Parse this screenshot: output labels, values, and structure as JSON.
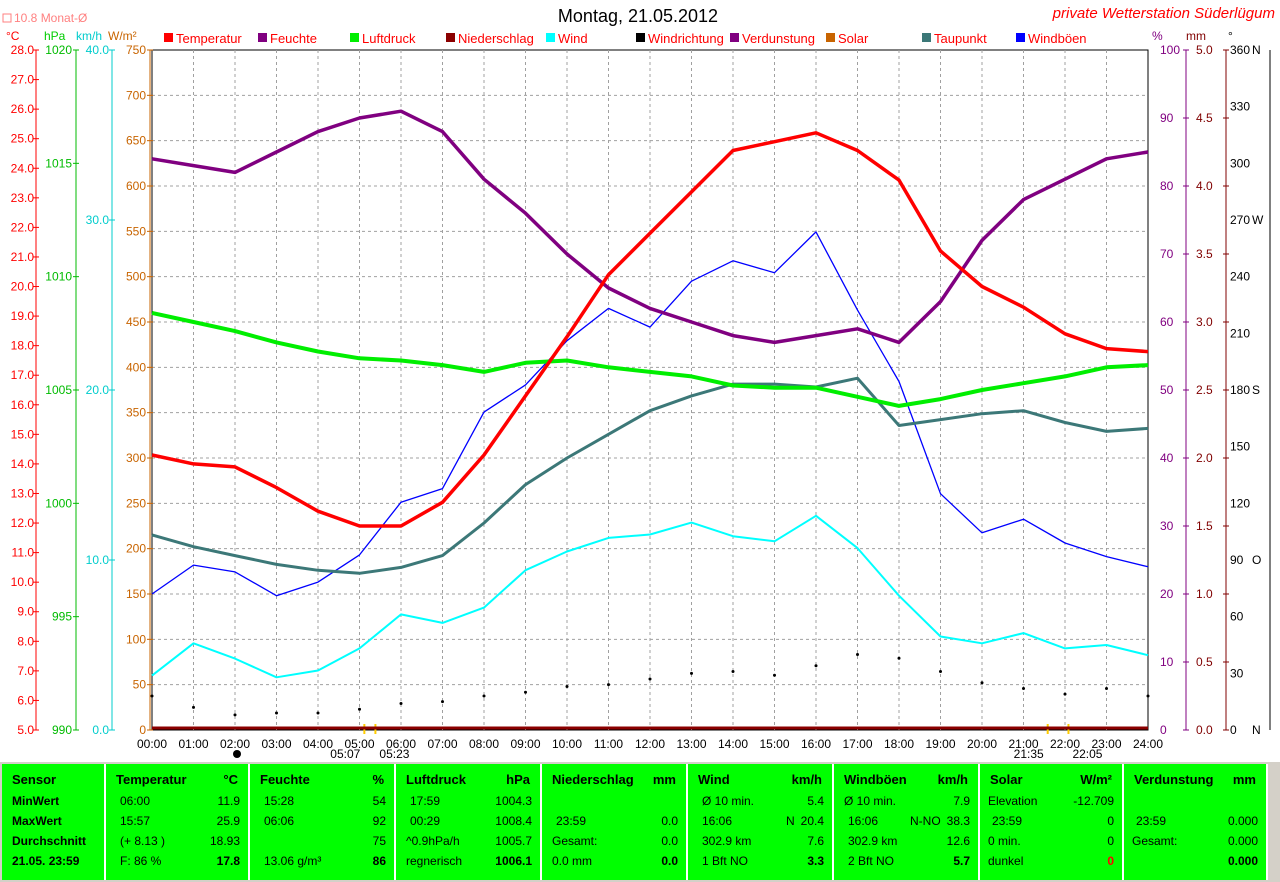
{
  "header": {
    "title": "Montag, 21.05.2012",
    "station": "private Wetterstation Süderlügum",
    "monthly_avg": "10.8 Monat-Ø",
    "units_left": [
      "°C",
      "hPa",
      "km/h",
      "W/m²"
    ],
    "units_right": [
      "%",
      "mm",
      "°"
    ]
  },
  "colors": {
    "temperature": "#ff0000",
    "humidity": "#800080",
    "pressure": "#00ee00",
    "precipitation": "#8b0000",
    "wind": "#00ffff",
    "wind_direction": "#000000",
    "evaporation": "#800080",
    "solar": "#c86400",
    "dewpoint": "#3c7878",
    "gusts": "#0000ff",
    "stats_bg": "#00ff00"
  },
  "chart_data": {
    "type": "line",
    "x": [
      "00:00",
      "01:00",
      "02:00",
      "03:00",
      "04:00",
      "05:00",
      "06:00",
      "07:00",
      "08:00",
      "09:00",
      "10:00",
      "11:00",
      "12:00",
      "13:00",
      "14:00",
      "15:00",
      "16:00",
      "17:00",
      "18:00",
      "19:00",
      "20:00",
      "21:00",
      "22:00",
      "23:00",
      "24:00"
    ],
    "series": [
      {
        "name": "Temperatur",
        "key": "temperature",
        "axis": "temp",
        "values": [
          14.3,
          14.0,
          13.9,
          13.2,
          12.4,
          11.9,
          11.9,
          12.7,
          14.3,
          16.3,
          18.3,
          20.4,
          21.8,
          23.2,
          24.6,
          24.9,
          25.2,
          24.6,
          23.6,
          21.2,
          20.0,
          19.3,
          18.4,
          17.9,
          17.8
        ]
      },
      {
        "name": "Feuchte",
        "key": "humidity",
        "axis": "pct",
        "values": [
          84,
          83,
          82,
          85,
          88,
          90,
          91,
          88,
          81,
          76,
          70,
          65,
          62,
          60,
          58,
          57,
          58,
          59,
          57,
          63,
          72,
          78,
          81,
          84,
          85
        ]
      },
      {
        "name": "Luftdruck",
        "key": "pressure",
        "axis": "hpa",
        "values": [
          1008.4,
          1008.0,
          1007.6,
          1007.1,
          1006.7,
          1006.4,
          1006.3,
          1006.1,
          1005.8,
          1006.2,
          1006.3,
          1006.0,
          1005.8,
          1005.6,
          1005.2,
          1005.1,
          1005.1,
          1004.7,
          1004.3,
          1004.6,
          1005.0,
          1005.3,
          1005.6,
          1006.0,
          1006.1
        ]
      },
      {
        "name": "Taupunkt",
        "key": "dewpoint",
        "axis": "temp",
        "values": [
          11.6,
          11.2,
          10.9,
          10.6,
          10.4,
          10.3,
          10.5,
          10.9,
          12.0,
          13.3,
          14.2,
          15.0,
          15.8,
          16.3,
          16.7,
          16.7,
          16.6,
          16.9,
          15.3,
          15.5,
          15.7,
          15.8,
          15.4,
          15.1,
          15.2
        ]
      },
      {
        "name": "Wind",
        "key": "wind",
        "axis": "kmh",
        "values": [
          3.2,
          5.1,
          4.2,
          3.1,
          3.5,
          4.8,
          6.8,
          6.3,
          7.2,
          9.4,
          10.5,
          11.3,
          11.5,
          12.2,
          11.4,
          11.1,
          12.6,
          10.7,
          7.9,
          5.5,
          5.1,
          5.7,
          4.8,
          5.0,
          4.4
        ]
      },
      {
        "name": "Windböen",
        "key": "gusts",
        "axis": "kmh",
        "values": [
          8.0,
          9.7,
          9.3,
          7.9,
          8.7,
          10.3,
          13.4,
          14.2,
          18.7,
          20.3,
          22.9,
          24.8,
          23.7,
          26.4,
          27.6,
          26.9,
          29.3,
          24.7,
          20.5,
          13.9,
          11.6,
          12.4,
          11.0,
          10.2,
          9.6
        ]
      },
      {
        "name": "Windrichtung",
        "key": "wind_direction",
        "axis": "deg",
        "values": [
          18,
          12,
          8,
          9,
          9,
          11,
          14,
          15,
          18,
          20,
          23,
          24,
          27,
          30,
          31,
          29,
          34,
          40,
          38,
          31,
          25,
          22,
          19,
          22,
          18
        ]
      },
      {
        "name": "Niederschlag",
        "key": "precipitation",
        "axis": "mm",
        "values": [
          0,
          0,
          0,
          0,
          0,
          0,
          0,
          0,
          0,
          0,
          0,
          0,
          0,
          0,
          0,
          0,
          0,
          0,
          0,
          0,
          0,
          0,
          0,
          0,
          0
        ]
      }
    ],
    "legend": [
      "Temperatur",
      "Feuchte",
      "Luftdruck",
      "Niederschlag",
      "Wind",
      "Windrichtung",
      "Verdunstung",
      "Solar",
      "Taupunkt",
      "Windböen"
    ],
    "axes": {
      "temp": {
        "range": [
          5.0,
          28.0
        ],
        "ticks": [
          "5.0",
          "6.0",
          "7.0",
          "8.0",
          "9.0",
          "10.0",
          "11.0",
          "12.0",
          "13.0",
          "14.0",
          "15.0",
          "16.0",
          "17.0",
          "18.0",
          "19.0",
          "20.0",
          "21.0",
          "22.0",
          "23.0",
          "24.0",
          "25.0",
          "26.0",
          "27.0",
          "28.0"
        ]
      },
      "hpa": {
        "range": [
          990,
          1020
        ],
        "ticks": [
          "990",
          "995",
          "1000",
          "1005",
          "1010",
          "1015",
          "1020"
        ]
      },
      "kmh": {
        "range": [
          0,
          40
        ],
        "ticks": [
          "0.0",
          "10.0",
          "20.0",
          "30.0",
          "40.0"
        ]
      },
      "wm2": {
        "range": [
          0,
          750
        ],
        "ticks": [
          "0",
          "50",
          "100",
          "150",
          "200",
          "250",
          "300",
          "350",
          "400",
          "450",
          "500",
          "550",
          "600",
          "650",
          "700",
          "750"
        ]
      },
      "pct": {
        "range": [
          0,
          100
        ],
        "ticks": [
          "0",
          "10",
          "20",
          "30",
          "40",
          "50",
          "60",
          "70",
          "80",
          "90",
          "100"
        ]
      },
      "mm": {
        "range": [
          0,
          5
        ],
        "ticks": [
          "0.0",
          "0.5",
          "1.0",
          "1.5",
          "2.0",
          "2.5",
          "3.0",
          "3.5",
          "4.0",
          "4.5",
          "5.0"
        ]
      },
      "deg": {
        "range": [
          0,
          360
        ],
        "ticks": [
          "0",
          "30",
          "60",
          "90",
          "120",
          "150",
          "180",
          "210",
          "240",
          "270",
          "300",
          "330",
          "360"
        ],
        "compass": {
          "0": "N",
          "90": "O",
          "180": "S",
          "270": "W",
          "360": "N"
        }
      }
    },
    "grid": true,
    "sun_marks": {
      "sunrise": "05:07",
      "sunrise2": "05:23",
      "sunset": "21:35",
      "sunset2": "22:05"
    }
  },
  "stats": {
    "sensor": {
      "title": "Sensor",
      "rows": [
        "MinWert",
        "MaxWert",
        "Durchschnitt",
        "21.05. 23:59"
      ]
    },
    "temperature": {
      "title": "Temperatur",
      "unit": "°C",
      "rows": [
        [
          "06:00",
          "11.9"
        ],
        [
          "15:57",
          "25.9"
        ],
        [
          "(+ 8.13 )",
          "18.93"
        ],
        [
          "F: 86 %",
          "17.8"
        ]
      ]
    },
    "humidity": {
      "title": "Feuchte",
      "unit": "%",
      "rows": [
        [
          "15:28",
          "54"
        ],
        [
          "06:06",
          "92"
        ],
        [
          "",
          "75"
        ],
        [
          "13.06 g/m³",
          "86"
        ]
      ]
    },
    "pressure": {
      "title": "Luftdruck",
      "unit": "hPa",
      "rows": [
        [
          "17:59",
          "1004.3"
        ],
        [
          "00:29",
          "1008.4"
        ],
        [
          "^0.9hPa/h",
          "1005.7"
        ],
        [
          "regnerisch",
          "1006.1"
        ]
      ]
    },
    "precipitation": {
      "title": "Niederschlag",
      "unit": "mm",
      "rows": [
        [
          "",
          ""
        ],
        [
          "23:59",
          "0.0"
        ],
        [
          "Gesamt:",
          "0.0"
        ],
        [
          "0.0 mm",
          "0.0"
        ]
      ]
    },
    "wind": {
      "title": "Wind",
      "unit": "km/h",
      "rows": [
        [
          "Ø 10 min.",
          "",
          "5.4"
        ],
        [
          "16:06",
          "N",
          "20.4"
        ],
        [
          "302.9 km",
          "",
          "7.6"
        ],
        [
          "1 Bft NO",
          "",
          "3.3"
        ]
      ]
    },
    "gusts": {
      "title": "Windböen",
      "unit": "km/h",
      "rows": [
        [
          "Ø 10 min.",
          "",
          "7.9"
        ],
        [
          "16:06",
          "N-NO",
          "38.3"
        ],
        [
          "302.9 km",
          "",
          "12.6"
        ],
        [
          "2 Bft NO",
          "",
          "5.7"
        ]
      ]
    },
    "solar": {
      "title": "Solar",
      "unit": "W/m²",
      "rows": [
        [
          "Elevation",
          "-12.709"
        ],
        [
          "23:59",
          "0"
        ],
        [
          "0 min.",
          "0"
        ],
        [
          "dunkel",
          "0"
        ]
      ]
    },
    "evaporation": {
      "title": "Verdunstung",
      "unit": "mm",
      "rows": [
        [
          "",
          ""
        ],
        [
          "23:59",
          "0.000"
        ],
        [
          "Gesamt:",
          "0.000"
        ],
        [
          "",
          "0.000"
        ]
      ]
    }
  }
}
